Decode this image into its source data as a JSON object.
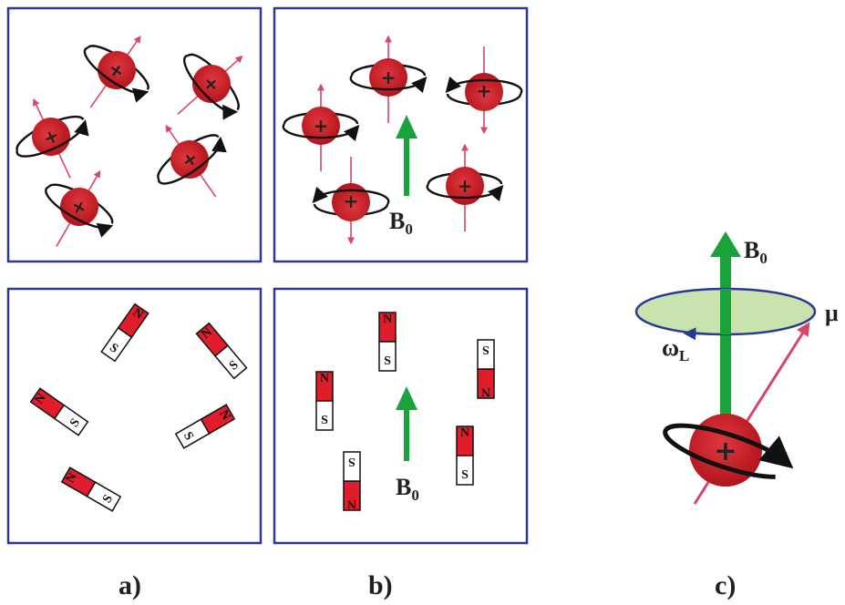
{
  "panel_labels": {
    "a": "a)",
    "b": "b)",
    "c": "c)"
  },
  "field": {
    "label": "B",
    "subscript": "0"
  },
  "precession": {
    "label": "ω",
    "subscript": "L"
  },
  "moment": {
    "label": "μ"
  },
  "proton": {
    "sign": "+"
  },
  "magnet": {
    "north": "N",
    "south": "S"
  },
  "colors": {
    "panel_border": "#2b3a8f",
    "proton": "#c8202a",
    "arrow_field": "#1aa33a",
    "spin_axis": "#d6456b",
    "precession_disc": "#c9e3ae",
    "precession_disc_border": "#2b3a8f",
    "magnet_north": "#e11d2b"
  }
}
